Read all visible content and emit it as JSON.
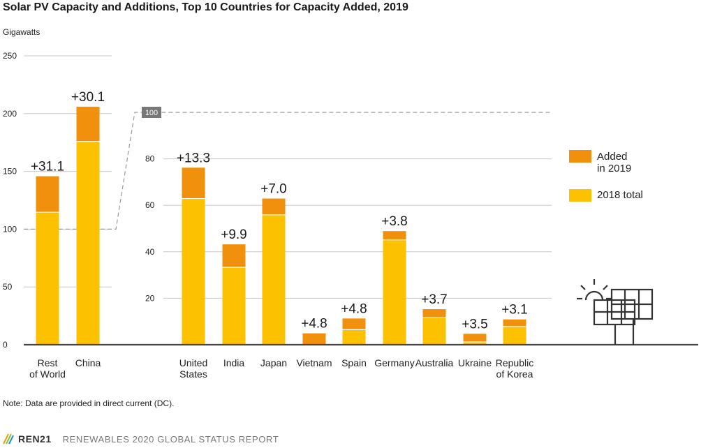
{
  "title": "Solar PV Capacity and Additions, Top 10 Countries for Capacity Added, 2019",
  "note": "Note: Data are provided in direct current (DC).",
  "footer": {
    "brand": "REN21",
    "report": "RENEWABLES 2020 GLOBAL STATUS REPORT"
  },
  "colors": {
    "added": "#f0900c",
    "base": "#fcc100",
    "grid": "#c8c8c8",
    "axis": "#444444",
    "dash": "#999999"
  },
  "chart_data": [
    {
      "type": "bar",
      "stacked": true,
      "ylabel": "Gigawatts",
      "ylim": [
        0,
        250
      ],
      "yticks": [
        0,
        50,
        100,
        150,
        200,
        250
      ],
      "categories": [
        "Rest\nof World",
        "China"
      ],
      "series": [
        {
          "name": "2018 total",
          "values": [
            114.7,
            175.9
          ]
        },
        {
          "name": "Added\nin 2019",
          "values": [
            31.1,
            30.1
          ]
        }
      ],
      "data_labels": [
        "+31.1",
        "+30.1"
      ],
      "reference_line": {
        "value": 100,
        "label": "100"
      }
    },
    {
      "type": "bar",
      "stacked": true,
      "ylim": [
        0,
        100
      ],
      "yticks": [
        20,
        40,
        60,
        80
      ],
      "categories": [
        "United\nStates",
        "India",
        "Japan",
        "Vietnam",
        "Spain",
        "Germany",
        "Australia",
        "Ukraine",
        "Republic\nof Korea"
      ],
      "series": [
        {
          "name": "2018 total",
          "values": [
            62.9,
            33.3,
            55.9,
            0.1,
            6.5,
            45.1,
            11.6,
            1.2,
            7.8
          ]
        },
        {
          "name": "Added\nin 2019",
          "values": [
            13.3,
            9.9,
            7.0,
            4.8,
            4.8,
            3.8,
            3.7,
            3.5,
            3.1
          ]
        }
      ],
      "data_labels": [
        "+13.3",
        "+9.9",
        "+7.0",
        "+4.8",
        "+4.8",
        "+3.8",
        "+3.7",
        "+3.5",
        "+3.1"
      ],
      "legend": {
        "position": "right",
        "entries": [
          "Added\nin 2019",
          "2018 total"
        ]
      }
    }
  ]
}
